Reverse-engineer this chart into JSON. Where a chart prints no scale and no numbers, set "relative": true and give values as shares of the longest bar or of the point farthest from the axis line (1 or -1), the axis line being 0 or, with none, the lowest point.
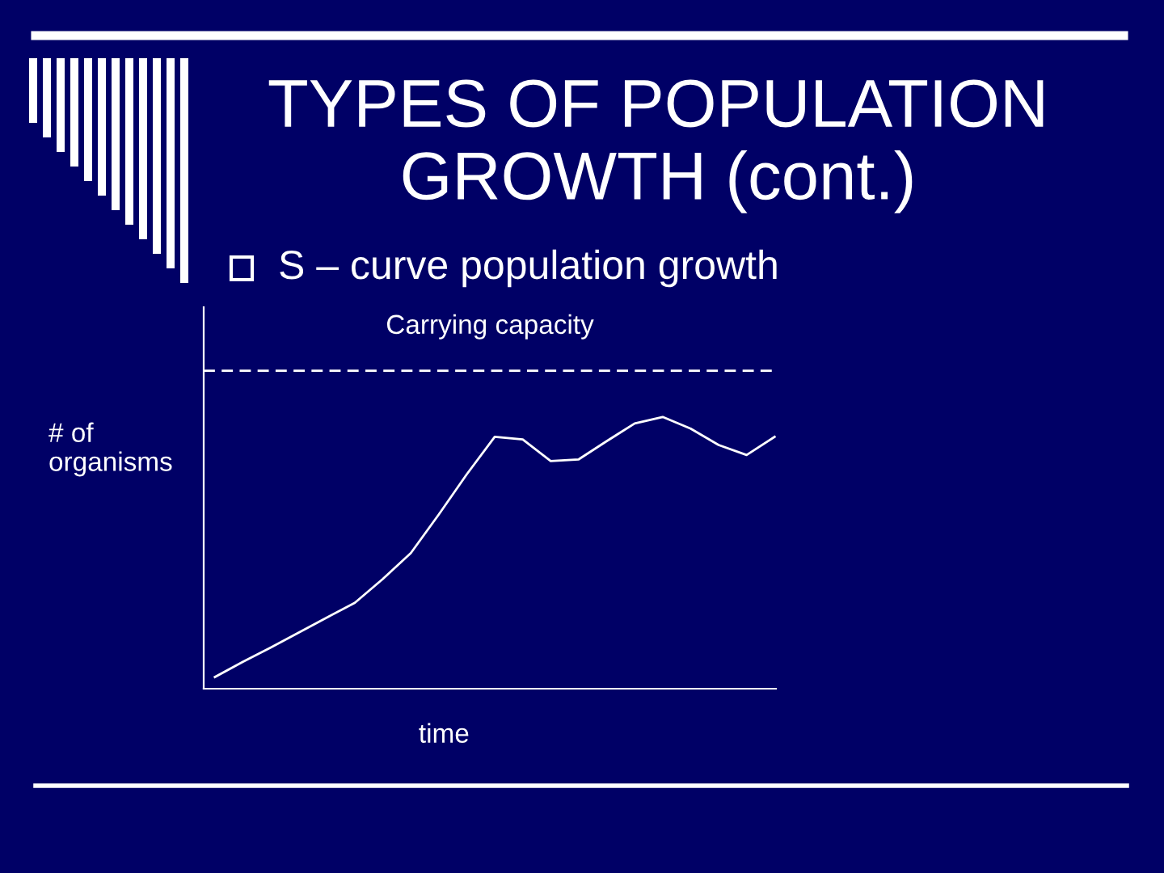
{
  "chart_data": {
    "type": "line",
    "title": "TYPES OF POPULATION\nGROWTH (cont.)",
    "subtitle": "S – curve population growth",
    "xlabel": "time",
    "ylabel": "# of\norganisms",
    "relative": true,
    "categories": [
      null,
      null,
      null,
      null,
      null,
      null,
      null,
      null,
      null,
      null,
      null,
      null,
      null,
      null,
      null,
      null,
      null,
      null,
      null,
      null,
      null
    ],
    "series": [
      {
        "color": "#ffffff",
        "values": [
          0.043,
          0.099,
          0.152,
          0.207,
          0.262,
          0.316,
          0.404,
          0.499,
          0.641,
          0.789,
          0.927,
          0.917,
          0.838,
          0.844,
          0.911,
          0.976,
          1,
          0.957,
          0.897,
          0.86,
          0.927
        ]
      }
    ],
    "ref_lines": [
      {
        "axis": "y",
        "value": 1.17,
        "label": "Carrying capacity",
        "color": "#ffffff",
        "line_style": "dashed"
      }
    ],
    "legend": false,
    "marker": "none",
    "line_style": "solid"
  }
}
